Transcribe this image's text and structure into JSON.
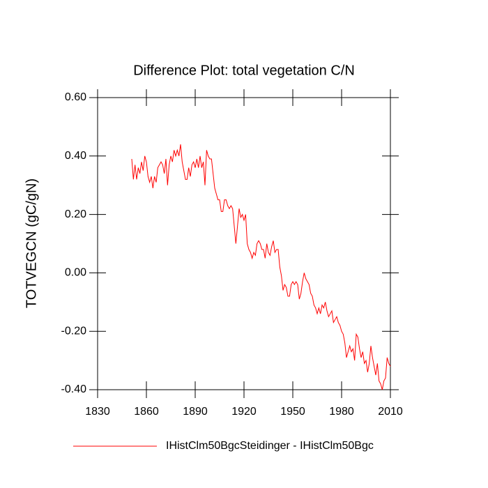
{
  "chart_data": {
    "type": "line",
    "title": "Difference Plot: total vegetation C/N",
    "y_label": "TOTVEGCN  (gC/gN)",
    "x": [
      1851,
      1852,
      1853,
      1854,
      1855,
      1856,
      1857,
      1858,
      1859,
      1860,
      1861,
      1862,
      1863,
      1864,
      1865,
      1866,
      1867,
      1868,
      1869,
      1870,
      1871,
      1872,
      1873,
      1874,
      1875,
      1876,
      1877,
      1878,
      1879,
      1880,
      1881,
      1882,
      1883,
      1884,
      1885,
      1886,
      1887,
      1888,
      1889,
      1890,
      1891,
      1892,
      1893,
      1894,
      1895,
      1896,
      1897,
      1898,
      1899,
      1900,
      1901,
      1902,
      1903,
      1904,
      1905,
      1906,
      1907,
      1908,
      1909,
      1910,
      1911,
      1912,
      1913,
      1914,
      1915,
      1916,
      1917,
      1918,
      1919,
      1920,
      1921,
      1922,
      1923,
      1924,
      1925,
      1926,
      1927,
      1928,
      1929,
      1930,
      1931,
      1932,
      1933,
      1934,
      1935,
      1936,
      1937,
      1938,
      1939,
      1940,
      1941,
      1942,
      1943,
      1944,
      1945,
      1946,
      1947,
      1948,
      1949,
      1950,
      1951,
      1952,
      1953,
      1954,
      1955,
      1956,
      1957,
      1958,
      1959,
      1960,
      1961,
      1962,
      1963,
      1964,
      1965,
      1966,
      1967,
      1968,
      1969,
      1970,
      1971,
      1972,
      1973,
      1974,
      1975,
      1976,
      1977,
      1978,
      1979,
      1980,
      1981,
      1982,
      1983,
      1984,
      1985,
      1986,
      1987,
      1988,
      1989,
      1990,
      1991,
      1992,
      1993,
      1994,
      1995,
      1996,
      1997,
      1998,
      1999,
      2000,
      2001,
      2002,
      2003,
      2004,
      2005,
      2006,
      2007,
      2008,
      2009,
      2010
    ],
    "series": [
      {
        "name": "IHistClm50BgcSteidinger - IHistClm50Bgc",
        "color": "#ff0000",
        "values": [
          0.39,
          0.32,
          0.37,
          0.32,
          0.36,
          0.34,
          0.38,
          0.35,
          0.4,
          0.38,
          0.33,
          0.31,
          0.33,
          0.29,
          0.33,
          0.31,
          0.36,
          0.37,
          0.38,
          0.37,
          0.34,
          0.39,
          0.3,
          0.37,
          0.4,
          0.38,
          0.42,
          0.4,
          0.42,
          0.4,
          0.44,
          0.38,
          0.35,
          0.32,
          0.32,
          0.36,
          0.33,
          0.37,
          0.38,
          0.36,
          0.39,
          0.36,
          0.4,
          0.36,
          0.38,
          0.3,
          0.42,
          0.4,
          0.39,
          0.39,
          0.34,
          0.29,
          0.27,
          0.25,
          0.25,
          0.21,
          0.21,
          0.25,
          0.25,
          0.23,
          0.22,
          0.23,
          0.22,
          0.16,
          0.1,
          0.16,
          0.22,
          0.19,
          0.2,
          0.18,
          0.2,
          0.1,
          0.08,
          0.07,
          0.05,
          0.07,
          0.06,
          0.1,
          0.11,
          0.1,
          0.08,
          0.08,
          0.05,
          0.1,
          0.07,
          0.06,
          0.09,
          0.11,
          0.07,
          0.08,
          0.08,
          0.02,
          -0.01,
          -0.06,
          -0.04,
          -0.05,
          -0.08,
          -0.08,
          -0.04,
          -0.03,
          -0.04,
          -0.03,
          -0.04,
          -0.09,
          -0.07,
          -0.03,
          0.0,
          -0.02,
          -0.03,
          -0.04,
          -0.07,
          -0.08,
          -0.11,
          -0.12,
          -0.14,
          -0.12,
          -0.14,
          -0.11,
          -0.12,
          -0.1,
          -0.13,
          -0.15,
          -0.14,
          -0.13,
          -0.17,
          -0.16,
          -0.15,
          -0.17,
          -0.18,
          -0.2,
          -0.21,
          -0.24,
          -0.29,
          -0.27,
          -0.25,
          -0.27,
          -0.26,
          -0.3,
          -0.21,
          -0.22,
          -0.26,
          -0.29,
          -0.27,
          -0.31,
          -0.3,
          -0.34,
          -0.31,
          -0.25,
          -0.29,
          -0.32,
          -0.35,
          -0.31,
          -0.37,
          -0.38,
          -0.4,
          -0.37,
          -0.36,
          -0.29,
          -0.31,
          -0.32
        ]
      }
    ],
    "xlim": [
      1830,
      2010
    ],
    "xticks": [
      1830,
      1860,
      1890,
      1920,
      1950,
      1980,
      2010
    ],
    "ylim": [
      -0.4,
      0.6
    ],
    "yticks": [
      {
        "value": -0.4,
        "label": "-0.40"
      },
      {
        "value": -0.2,
        "label": "-0.20"
      },
      {
        "value": 0,
        "label": "0.00"
      },
      {
        "value": 0.2,
        "label": "0.20"
      },
      {
        "value": 0.4,
        "label": "0.40"
      },
      {
        "value": 0.6,
        "label": "0.60"
      }
    ],
    "grid": false
  }
}
